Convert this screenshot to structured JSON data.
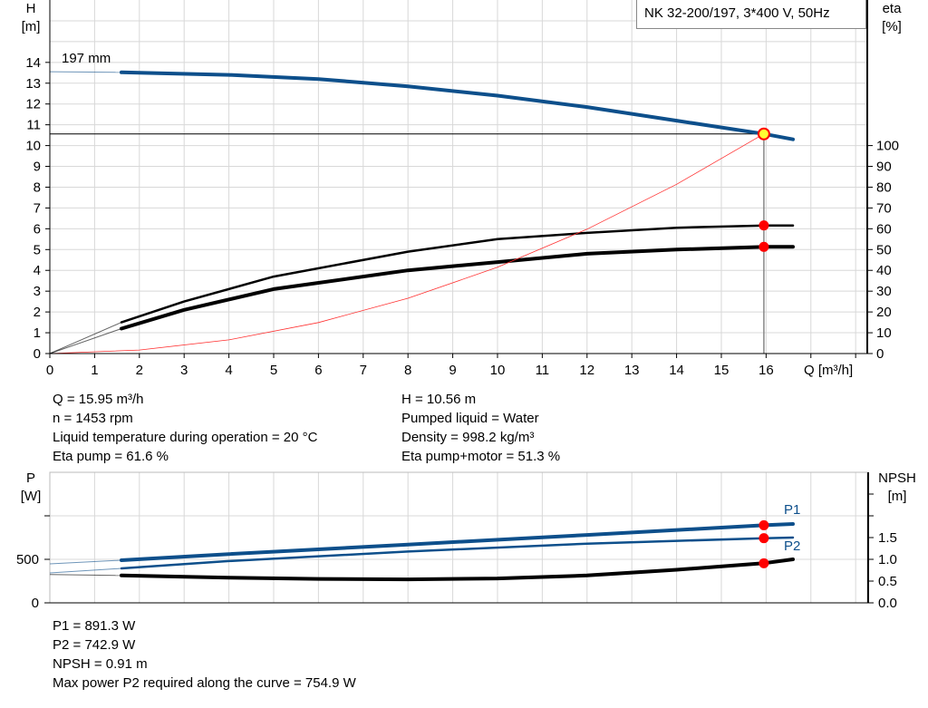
{
  "legend_title": "NK 32-200/197, 3*400 V, 50Hz",
  "colors": {
    "head": "#0d4f8b",
    "eta": "#000000",
    "system": "#ff3030",
    "p1": "#0d4f8b",
    "p2": "#0d4f8b",
    "npsh": "#000000",
    "point": "#ff0000",
    "duty_point": "#ffff33",
    "grid": "#d8d8d8"
  },
  "chart_data": [
    {
      "type": "line",
      "xlabel": "Q [m³/h]",
      "ylabel": "H\n[m]",
      "y2label": "eta\n[%]",
      "xlim": [
        0,
        18.26
      ],
      "ylim": [
        0,
        17
      ],
      "y2lim": [
        0,
        170
      ],
      "xticks": [
        0,
        1,
        2,
        3,
        4,
        5,
        6,
        7,
        8,
        9,
        10,
        11,
        12,
        13,
        14,
        15,
        16
      ],
      "yticks": [
        0,
        1,
        2,
        3,
        4,
        5,
        6,
        7,
        8,
        9,
        10,
        11,
        12,
        13,
        14
      ],
      "y2ticks": [
        0,
        10,
        20,
        30,
        40,
        50,
        60,
        70,
        80,
        90,
        100
      ],
      "grid": true,
      "annotation": "197 mm",
      "duty_point": {
        "Q": 15.95,
        "H": 10.56
      },
      "series": [
        {
          "key": "head",
          "axis": "H",
          "x": [
            0,
            1.6,
            2,
            4,
            6,
            8,
            10,
            12,
            14,
            15.95,
            16.6
          ],
          "y": [
            13.55,
            13.52,
            13.5,
            13.4,
            13.2,
            12.85,
            12.4,
            11.85,
            11.2,
            10.56,
            10.3
          ]
        },
        {
          "key": "eta_pump",
          "axis": "eta",
          "x": [
            0,
            1.6,
            3,
            5,
            8,
            10,
            12,
            14,
            16,
            16.6
          ],
          "y": [
            0,
            15,
            25,
            37,
            49,
            55,
            58,
            60.5,
            61.6,
            61.6
          ]
        },
        {
          "key": "eta_pump_motor",
          "axis": "eta",
          "x": [
            0,
            1.6,
            3,
            5,
            8,
            10,
            12,
            14,
            16,
            16.6
          ],
          "y": [
            0,
            12,
            21,
            31,
            40,
            44,
            48,
            50,
            51.3,
            51.3
          ]
        },
        {
          "key": "system",
          "axis": "H",
          "x": [
            0,
            2,
            4,
            6,
            8,
            10,
            12,
            14,
            15.95
          ],
          "y": [
            0,
            0.17,
            0.66,
            1.49,
            2.66,
            4.15,
            5.98,
            8.14,
            10.56
          ]
        }
      ],
      "markers": [
        {
          "axis": "eta",
          "x": 15.95,
          "y": 61.6
        },
        {
          "axis": "eta",
          "x": 15.95,
          "y": 51.3
        }
      ]
    },
    {
      "type": "line",
      "ylabel": "P\n[W]",
      "y2label": "NPSH\n[m]",
      "xlim": [
        0,
        18.26
      ],
      "ylim": [
        0,
        1500
      ],
      "y2lim": [
        0,
        3
      ],
      "yticks": [
        0,
        500,
        1000
      ],
      "yticklabels": [
        "0",
        "500",
        ""
      ],
      "y2ticks": [
        0,
        0.5,
        1.0,
        1.5,
        2.0,
        2.5
      ],
      "y2ticklabels": [
        "0.0",
        "0.5",
        "1.0",
        "1.5",
        "",
        ""
      ],
      "grid": true,
      "series": [
        {
          "key": "p1",
          "name": "P1",
          "axis": "P",
          "x": [
            0,
            1.6,
            4,
            8,
            12,
            15.95,
            16.6
          ],
          "y": [
            448,
            490,
            560,
            670,
            780,
            891.3,
            906
          ]
        },
        {
          "key": "p2",
          "name": "P2",
          "axis": "P",
          "x": [
            0,
            1.6,
            4,
            8,
            12,
            15.95,
            16.6
          ],
          "y": [
            344,
            396,
            480,
            590,
            680,
            742.9,
            750
          ]
        },
        {
          "key": "npsh",
          "axis": "NPSH",
          "x": [
            0,
            1.6,
            4,
            6,
            8,
            10,
            12,
            14,
            15.95,
            16.6
          ],
          "y": [
            0.65,
            0.63,
            0.58,
            0.55,
            0.54,
            0.56,
            0.63,
            0.76,
            0.91,
            1.0
          ]
        }
      ],
      "markers": [
        {
          "axis": "P",
          "x": 15.95,
          "y": 891.3
        },
        {
          "axis": "P",
          "x": 15.95,
          "y": 742.9
        },
        {
          "axis": "NPSH",
          "x": 15.95,
          "y": 0.91
        }
      ]
    }
  ],
  "operating_info": {
    "left": [
      "Q = 15.95 m³/h",
      "n = 1453 rpm",
      "Liquid temperature during operation = 20 °C",
      "Eta pump = 61.6 %"
    ],
    "right": [
      "H = 10.56 m",
      "Pumped liquid = Water",
      "Density = 998.2 kg/m³",
      "Eta pump+motor = 51.3 %"
    ]
  },
  "power_info": [
    "P1 = 891.3 W",
    "P2 = 742.9 W",
    "NPSH = 0.91 m",
    "Max power P2 required along the curve = 754.9 W"
  ]
}
